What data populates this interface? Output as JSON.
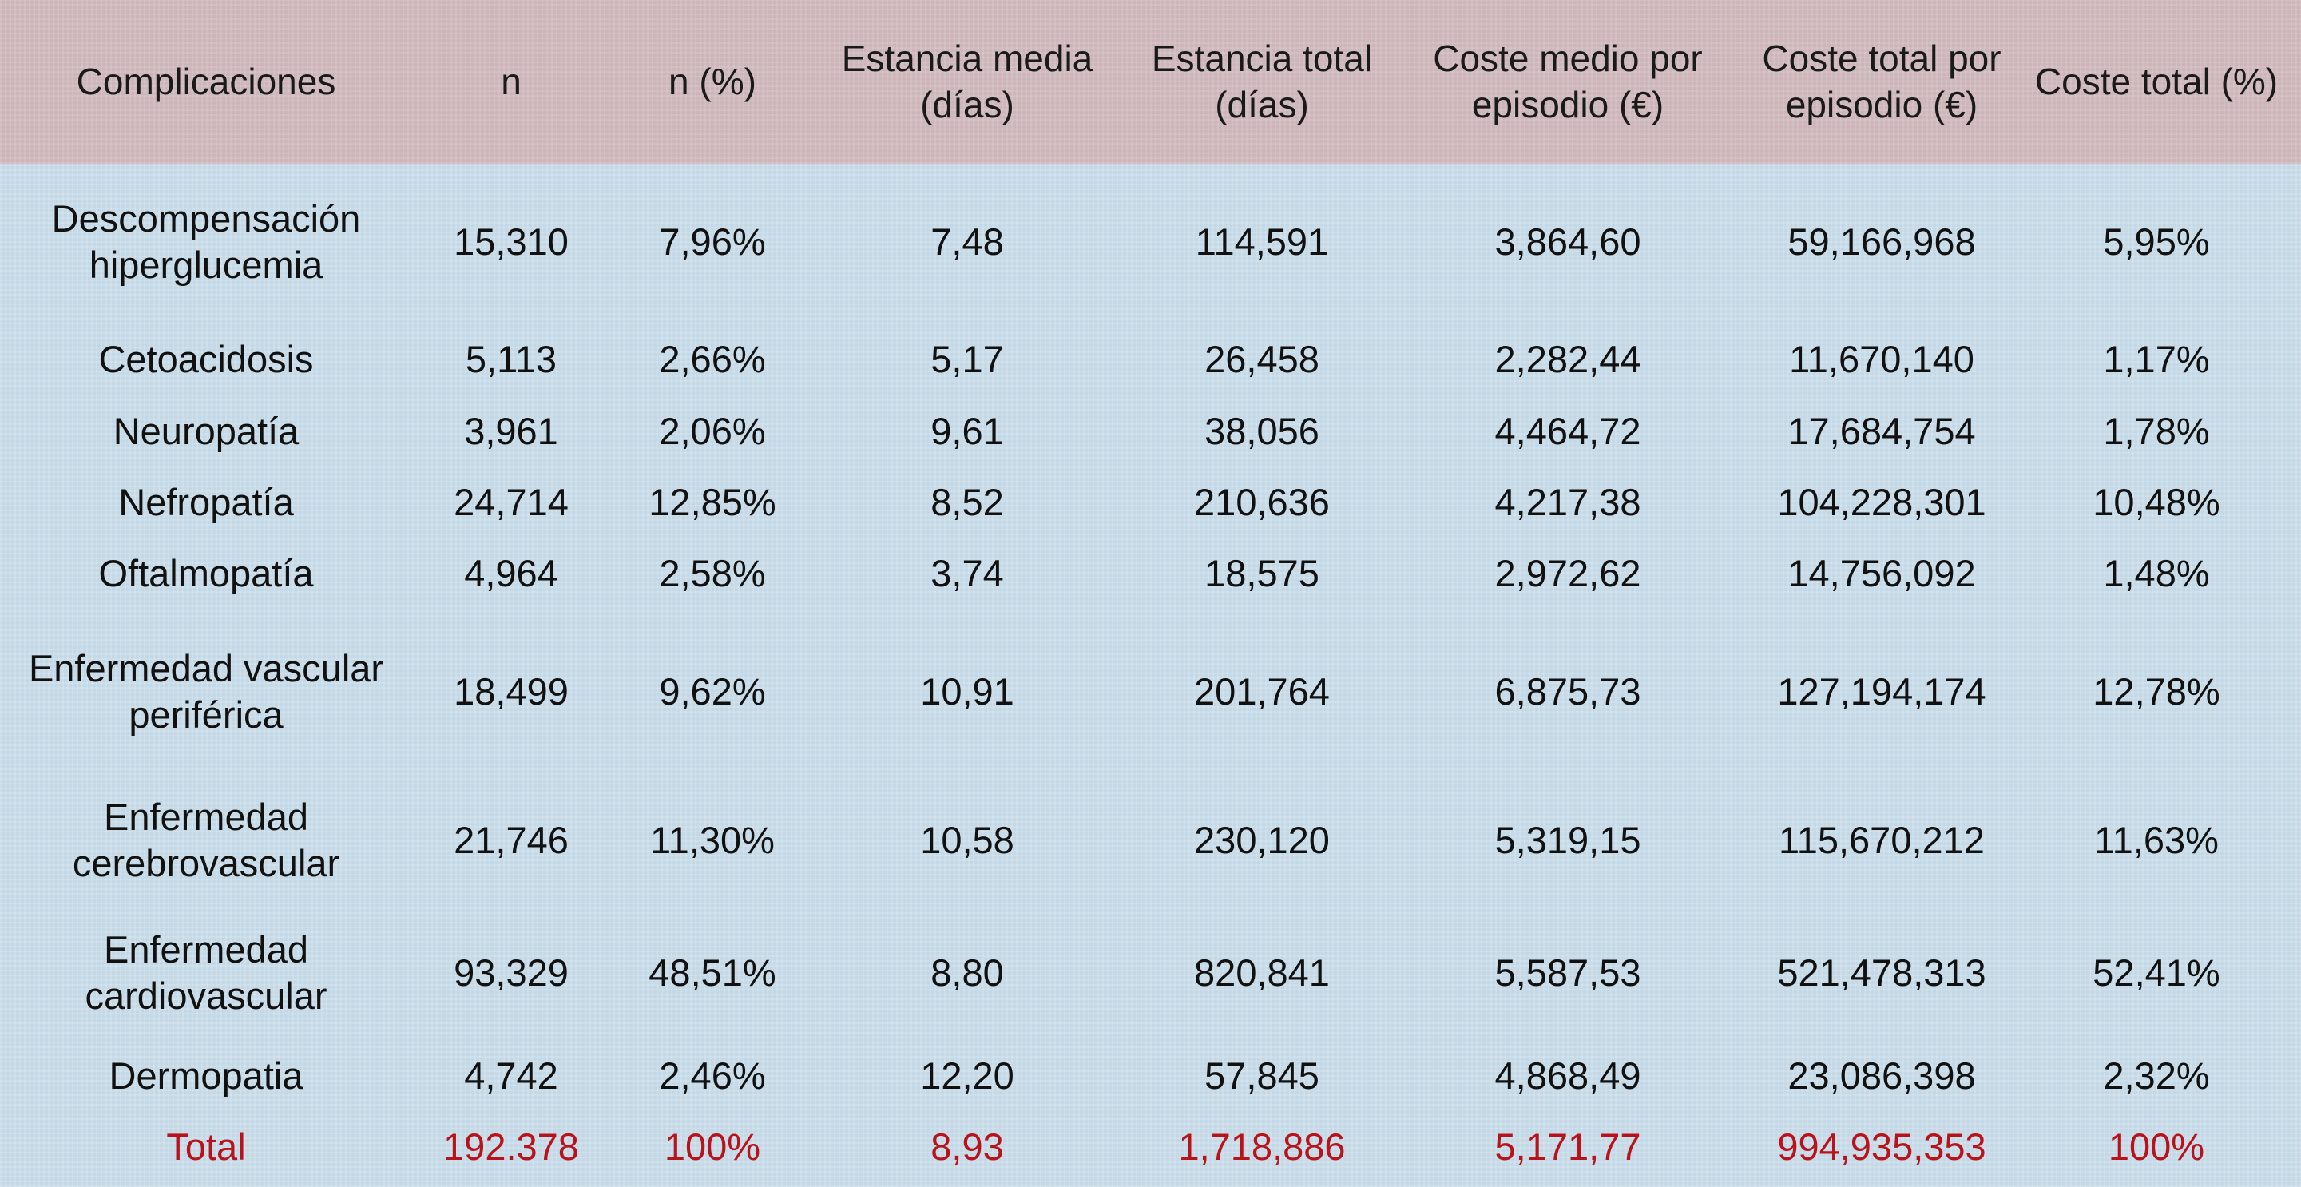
{
  "table": {
    "headers": [
      "Complicaciones",
      "n",
      "n (%)",
      "Estancia media\n(días)",
      "Estancia total\n(días)",
      "Coste medio por\nepisodio (€)",
      "Coste total por\nepisodio (€)",
      "Coste total (%)"
    ],
    "rows": [
      [
        "Descompensación\nhiperglucemia",
        "15,310",
        "7,96%",
        "7,48",
        "114,591",
        "3,864,60",
        "59,166,968",
        "5,95%"
      ],
      [
        "Cetoacidosis",
        "5,113",
        "2,66%",
        "5,17",
        "26,458",
        "2,282,44",
        "11,670,140",
        "1,17%"
      ],
      [
        "Neuropatía",
        "3,961",
        "2,06%",
        "9,61",
        "38,056",
        "4,464,72",
        "17,684,754",
        "1,78%"
      ],
      [
        "Nefropatía",
        "24,714",
        "12,85%",
        "8,52",
        "210,636",
        "4,217,38",
        "104,228,301",
        "10,48%"
      ],
      [
        "Oftalmopatía",
        "4,964",
        "2,58%",
        "3,74",
        "18,575",
        "2,972,62",
        "14,756,092",
        "1,48%"
      ],
      [
        "Enfermedad vascular\nperiférica",
        "18,499",
        "9,62%",
        "10,91",
        "201,764",
        "6,875,73",
        "127,194,174",
        "12,78%"
      ],
      [
        "Enfermedad\ncerebrovascular",
        "21,746",
        "11,30%",
        "10,58",
        "230,120",
        "5,319,15",
        "115,670,212",
        "11,63%"
      ],
      [
        "Enfermedad\ncardiovascular",
        "93,329",
        "48,51%",
        "8,80",
        "820,841",
        "5,587,53",
        "521,478,313",
        "52,41%"
      ],
      [
        "Dermopatia",
        "4,742",
        "2,46%",
        "12,20",
        "57,845",
        "4,868,49",
        "23,086,398",
        "2,32%"
      ]
    ],
    "total": [
      "Total",
      "192.378",
      "100%",
      "8,93",
      "1,718,886",
      "5,171,77",
      "994,935,353",
      "100%"
    ]
  },
  "colors": {
    "header_bg": "#cdb6b9",
    "body_bg": "#c4d8e6",
    "total_text": "#b8131b",
    "text": "#111111"
  }
}
